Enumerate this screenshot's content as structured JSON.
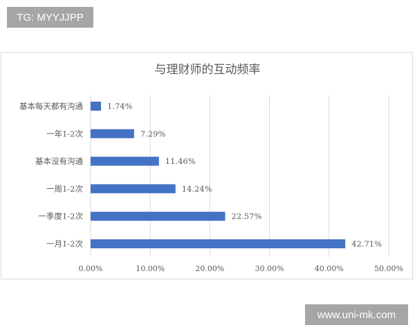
{
  "watermarks": {
    "top_left": "TG: MYYJJPP",
    "bottom_right": "www.uni-mk.com"
  },
  "chart_data": {
    "type": "bar",
    "orientation": "horizontal",
    "title": "与理财师的互动频率",
    "categories": [
      "基本每天都有沟通",
      "一年1-2次",
      "基本没有沟通",
      "一周1-2次",
      "一季度1-2次",
      "一月1-2次"
    ],
    "values": [
      1.74,
      7.29,
      11.46,
      14.24,
      22.57,
      42.71
    ],
    "data_labels": [
      "1.74%",
      "7.29%",
      "11.46%",
      "14.24%",
      "22.57%",
      "42.71%"
    ],
    "xlim": [
      0,
      50
    ],
    "xticks": [
      0,
      10,
      20,
      30,
      40,
      50
    ],
    "xtick_labels": [
      "0.00%",
      "10.00%",
      "20.00%",
      "30.00%",
      "40.00%",
      "50.00%"
    ],
    "xlabel": "",
    "ylabel": "",
    "grid": true,
    "legend": "none",
    "bar_color": "#4472c4"
  }
}
